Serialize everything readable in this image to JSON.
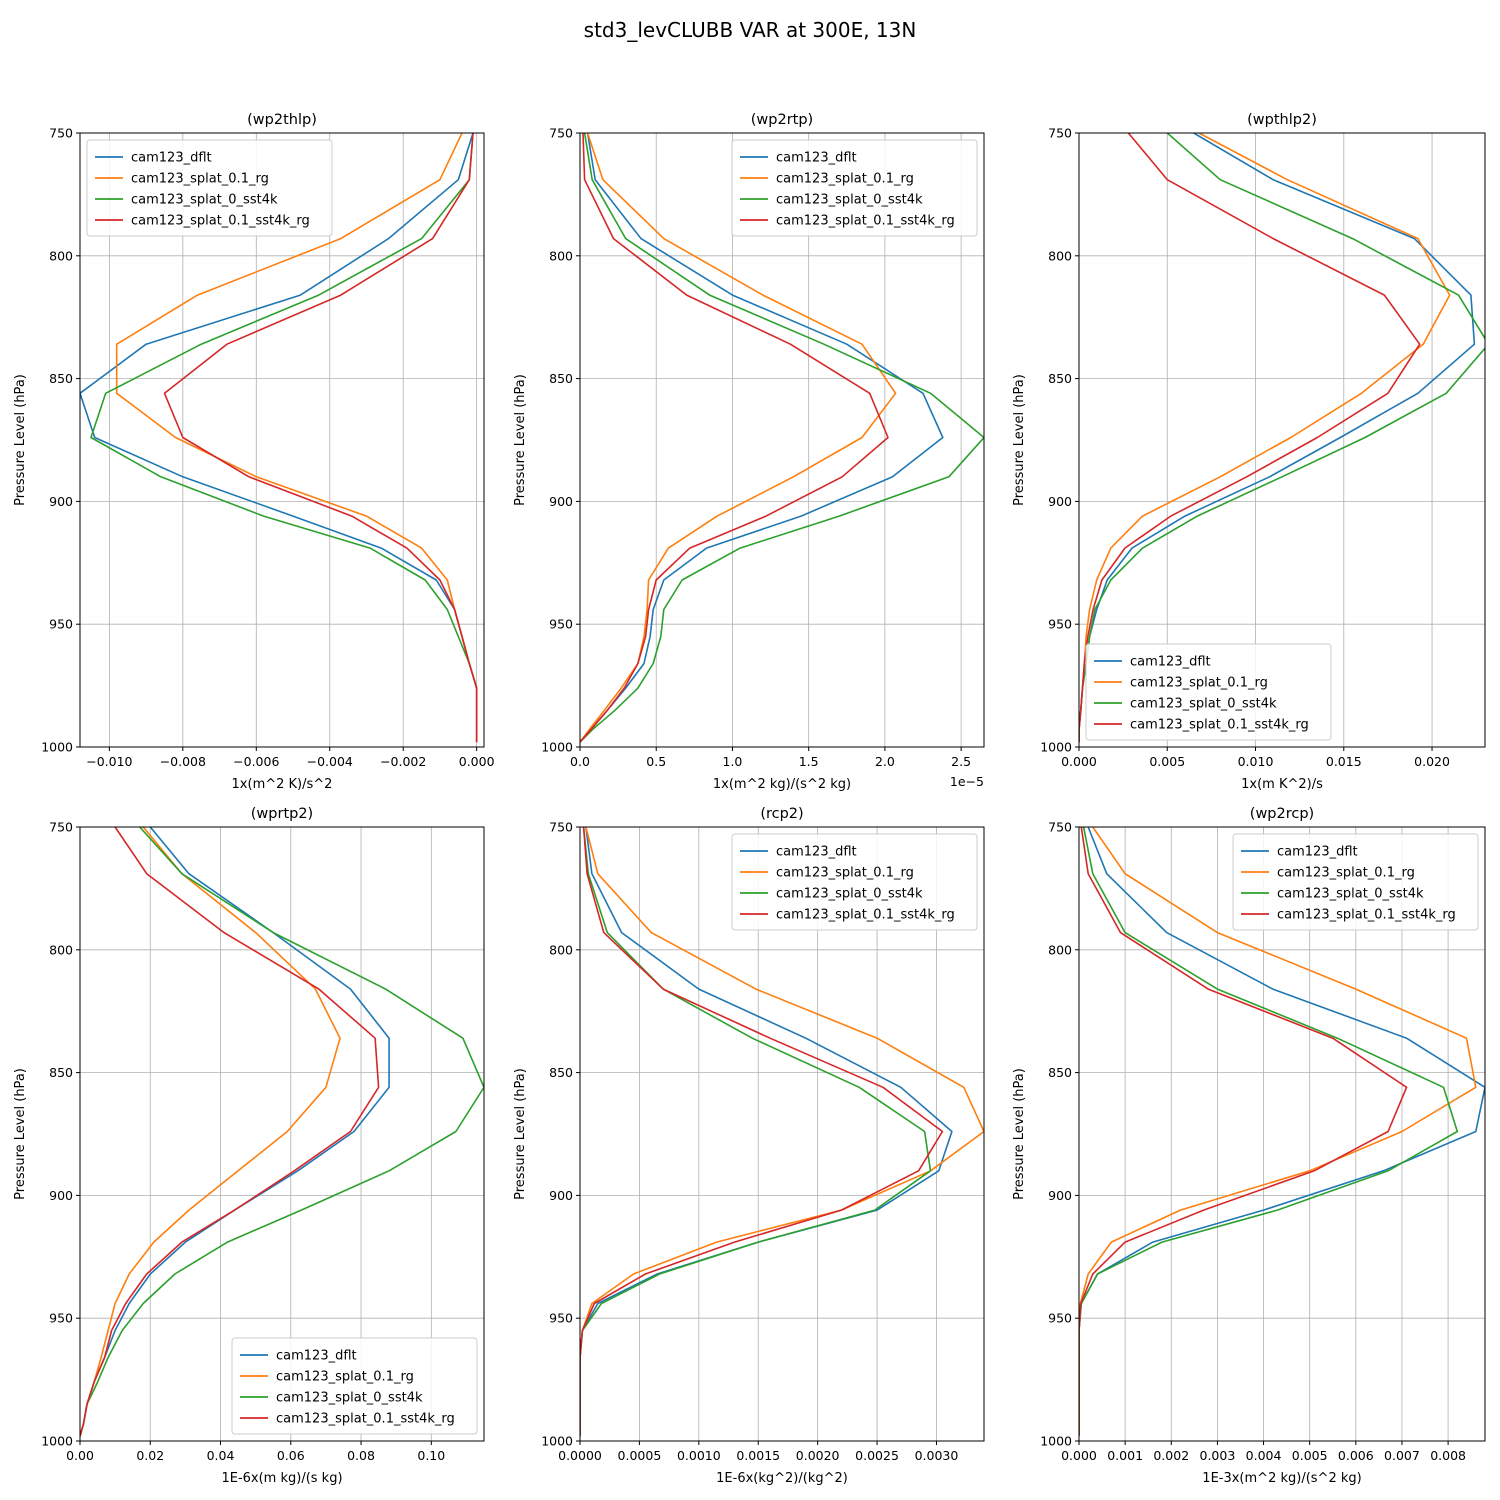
{
  "figure_title": "std3_levCLUBB VAR at 300E, 13N",
  "series_names": [
    "cam123_dflt",
    "cam123_splat_0.1_rg",
    "cam123_splat_0_sst4k",
    "cam123_splat_0.1_sst4k_rg"
  ],
  "series_colors": [
    "#1f77b4",
    "#ff7f0e",
    "#2ca02c",
    "#d62728"
  ],
  "chart_data": [
    {
      "type": "line",
      "title": "(wp2thlp)",
      "xlabel": "1x(m^2 K)/s^2",
      "ylabel": "Pressure Level (hPa)",
      "xlim": [
        -0.0108,
        0.0002
      ],
      "ylim": [
        1000,
        750
      ],
      "xticks": [
        -0.01,
        -0.008,
        -0.006,
        -0.004,
        -0.002,
        0.0
      ],
      "xtick_labels": [
        "−0.010",
        "−0.008",
        "−0.006",
        "−0.004",
        "−0.002",
        "0.000"
      ],
      "yticks": [
        750,
        800,
        850,
        900,
        950,
        1000
      ],
      "ytick_labels": [
        "750",
        "800",
        "850",
        "900",
        "950",
        "1000"
      ],
      "y": [
        750,
        769,
        793,
        816,
        836,
        856,
        874,
        890,
        906,
        919,
        932,
        944,
        955,
        966,
        976,
        985,
        993,
        998
      ],
      "series": [
        {
          "name": "cam123_dflt",
          "values": [
            -0.0001,
            -0.0005,
            -0.0024,
            -0.0048,
            -0.009,
            -0.0108,
            -0.0104,
            -0.008,
            -0.005,
            -0.0026,
            -0.0011,
            -0.0006,
            -0.0004,
            -0.0002,
            0.0,
            0.0,
            0.0,
            0.0
          ]
        },
        {
          "name": "cam123_splat_0.1_rg",
          "values": [
            -0.0004,
            -0.001,
            -0.0037,
            -0.0076,
            -0.0098,
            -0.0098,
            -0.0082,
            -0.006,
            -0.003,
            -0.0015,
            -0.0008,
            -0.0006,
            -0.0004,
            -0.0002,
            0.0,
            0.0,
            0.0,
            0.0
          ]
        },
        {
          "name": "cam123_splat_0_sst4k",
          "values": [
            -0.0001,
            -0.0002,
            -0.0015,
            -0.0043,
            -0.0075,
            -0.0101,
            -0.0105,
            -0.0086,
            -0.0058,
            -0.0029,
            -0.0014,
            -0.0008,
            -0.0005,
            -0.0002,
            0.0,
            0.0,
            0.0,
            0.0
          ]
        },
        {
          "name": "cam123_splat_0.1_sst4k_rg",
          "values": [
            -0.0001,
            -0.0002,
            -0.0012,
            -0.0037,
            -0.0068,
            -0.0085,
            -0.008,
            -0.0062,
            -0.0034,
            -0.0019,
            -0.001,
            -0.0006,
            -0.0004,
            -0.0002,
            0.0,
            0.0,
            0.0,
            0.0
          ]
        }
      ],
      "legend": "upper-left"
    },
    {
      "type": "line",
      "title": "(wp2rtp)",
      "xlabel": "1x(m^2 kg)/(s^2 kg)",
      "ylabel": "Pressure Level (hPa)",
      "offset_text": "1e−5",
      "xlim": [
        0,
        2.65
      ],
      "ylim": [
        1000,
        750
      ],
      "xticks": [
        0,
        0.5,
        1.0,
        1.5,
        2.0,
        2.5
      ],
      "xtick_labels": [
        "0.0",
        "0.5",
        "1.0",
        "1.5",
        "2.0",
        "2.5"
      ],
      "yticks": [
        750,
        800,
        850,
        900,
        950,
        1000
      ],
      "ytick_labels": [
        "750",
        "800",
        "850",
        "900",
        "950",
        "1000"
      ],
      "y": [
        750,
        769,
        793,
        816,
        836,
        856,
        874,
        890,
        906,
        919,
        932,
        944,
        955,
        966,
        976,
        985,
        993,
        998
      ],
      "series": [
        {
          "name": "cam123_dflt",
          "values": [
            0.05,
            0.1,
            0.4,
            1.0,
            1.75,
            2.25,
            2.38,
            2.05,
            1.45,
            0.83,
            0.55,
            0.48,
            0.46,
            0.42,
            0.3,
            0.18,
            0.07,
            0.0
          ]
        },
        {
          "name": "cam123_splat_0.1_rg",
          "values": [
            0.05,
            0.15,
            0.55,
            1.2,
            1.85,
            2.07,
            1.85,
            1.4,
            0.9,
            0.58,
            0.45,
            0.44,
            0.42,
            0.38,
            0.27,
            0.16,
            0.06,
            0.0
          ]
        },
        {
          "name": "cam123_splat_0_sst4k",
          "values": [
            0.03,
            0.08,
            0.3,
            0.85,
            1.6,
            2.3,
            2.65,
            2.42,
            1.7,
            1.05,
            0.67,
            0.55,
            0.53,
            0.48,
            0.38,
            0.23,
            0.08,
            0.0
          ]
        },
        {
          "name": "cam123_splat_0.1_sst4k_rg",
          "values": [
            0.02,
            0.03,
            0.22,
            0.7,
            1.38,
            1.9,
            2.02,
            1.72,
            1.22,
            0.72,
            0.5,
            0.45,
            0.43,
            0.38,
            0.29,
            0.18,
            0.07,
            0.0
          ]
        }
      ],
      "legend": "upper-right"
    },
    {
      "type": "line",
      "title": "(wpthlp2)",
      "xlabel": "1x(m K^2)/s",
      "ylabel": "Pressure Level (hPa)",
      "xlim": [
        0,
        0.023
      ],
      "ylim": [
        1000,
        750
      ],
      "xticks": [
        0,
        0.005,
        0.01,
        0.015,
        0.02
      ],
      "xtick_labels": [
        "0.000",
        "0.005",
        "0.010",
        "0.015",
        "0.020"
      ],
      "yticks": [
        750,
        800,
        850,
        900,
        950,
        1000
      ],
      "ytick_labels": [
        "750",
        "800",
        "850",
        "900",
        "950",
        "1000"
      ],
      "y": [
        750,
        769,
        793,
        816,
        836,
        856,
        874,
        890,
        906,
        919,
        932,
        944,
        955,
        966,
        976,
        985,
        993,
        998
      ],
      "series": [
        {
          "name": "cam123_dflt",
          "values": [
            0.0065,
            0.011,
            0.019,
            0.0222,
            0.0224,
            0.0192,
            0.0148,
            0.0108,
            0.006,
            0.003,
            0.0016,
            0.001,
            0.0006,
            0.0004,
            0.0002,
            0.0001,
            0.0,
            0.0
          ]
        },
        {
          "name": "cam123_splat_0.1_rg",
          "values": [
            0.0068,
            0.0118,
            0.0192,
            0.021,
            0.0195,
            0.016,
            0.012,
            0.008,
            0.0036,
            0.0018,
            0.001,
            0.0006,
            0.0004,
            0.0003,
            0.0002,
            0.0001,
            0.0,
            0.0
          ]
        },
        {
          "name": "cam123_splat_0_sst4k",
          "values": [
            0.005,
            0.008,
            0.0155,
            0.0215,
            0.0232,
            0.0208,
            0.0162,
            0.0115,
            0.0067,
            0.0036,
            0.0018,
            0.0009,
            0.0006,
            0.0004,
            0.0002,
            0.0001,
            0.0,
            0.0
          ]
        },
        {
          "name": "cam123_splat_0.1_sst4k_rg",
          "values": [
            0.0028,
            0.005,
            0.011,
            0.0173,
            0.0193,
            0.0175,
            0.0135,
            0.0095,
            0.0052,
            0.0026,
            0.0013,
            0.0008,
            0.0005,
            0.0003,
            0.0002,
            0.0001,
            0.0,
            0.0
          ]
        }
      ],
      "legend": "lower-left"
    },
    {
      "type": "line",
      "title": "(wprtp2)",
      "xlabel": "1E-6x(m kg)/(s kg)",
      "ylabel": "Pressure Level (hPa)",
      "xlim": [
        0,
        0.115
      ],
      "ylim": [
        1000,
        750
      ],
      "xticks": [
        0,
        0.02,
        0.04,
        0.06,
        0.08,
        0.1
      ],
      "xtick_labels": [
        "0.00",
        "0.02",
        "0.04",
        "0.06",
        "0.08",
        "0.10"
      ],
      "yticks": [
        750,
        800,
        850,
        900,
        950,
        1000
      ],
      "ytick_labels": [
        "750",
        "800",
        "850",
        "900",
        "950",
        "1000"
      ],
      "y": [
        750,
        769,
        793,
        816,
        836,
        856,
        874,
        890,
        906,
        919,
        932,
        944,
        955,
        966,
        976,
        985,
        993,
        998
      ],
      "series": [
        {
          "name": "cam123_dflt",
          "values": [
            0.02,
            0.031,
            0.055,
            0.077,
            0.088,
            0.088,
            0.078,
            0.062,
            0.044,
            0.03,
            0.02,
            0.014,
            0.01,
            0.007,
            0.004,
            0.002,
            0.001,
            0.0
          ]
        },
        {
          "name": "cam123_splat_0.1_rg",
          "values": [
            0.018,
            0.029,
            0.05,
            0.067,
            0.074,
            0.07,
            0.059,
            0.045,
            0.031,
            0.021,
            0.014,
            0.01,
            0.008,
            0.006,
            0.004,
            0.002,
            0.001,
            0.0
          ]
        },
        {
          "name": "cam123_splat_0_sst4k",
          "values": [
            0.017,
            0.029,
            0.055,
            0.087,
            0.109,
            0.115,
            0.107,
            0.088,
            0.063,
            0.042,
            0.027,
            0.018,
            0.012,
            0.008,
            0.005,
            0.002,
            0.001,
            0.0
          ]
        },
        {
          "name": "cam123_splat_0.1_sst4k_rg",
          "values": [
            0.01,
            0.019,
            0.041,
            0.068,
            0.084,
            0.085,
            0.077,
            0.061,
            0.044,
            0.029,
            0.019,
            0.013,
            0.009,
            0.007,
            0.004,
            0.002,
            0.001,
            0.0
          ]
        }
      ],
      "legend": "lower-right"
    },
    {
      "type": "line",
      "title": "(rcp2)",
      "xlabel": "1E-6x(kg^2)/(kg^2)",
      "ylabel": "Pressure Level (hPa)",
      "xlim": [
        0,
        0.0034
      ],
      "ylim": [
        1000,
        750
      ],
      "xticks": [
        0,
        0.0005,
        0.001,
        0.0015,
        0.002,
        0.0025,
        0.003
      ],
      "xtick_labels": [
        "0.0000",
        "0.0005",
        "0.0010",
        "0.0015",
        "0.0020",
        "0.0025",
        "0.0030"
      ],
      "yticks": [
        750,
        800,
        850,
        900,
        950,
        1000
      ],
      "ytick_labels": [
        "750",
        "800",
        "850",
        "900",
        "950",
        "1000"
      ],
      "y": [
        750,
        769,
        793,
        816,
        836,
        856,
        874,
        890,
        906,
        919,
        932,
        944,
        955,
        966,
        976,
        985,
        993,
        998
      ],
      "series": [
        {
          "name": "cam123_dflt",
          "values": [
            5e-05,
            0.0001,
            0.00035,
            0.001,
            0.0019,
            0.0027,
            0.00313,
            0.00302,
            0.0025,
            0.0015,
            0.00065,
            0.00015,
            2e-05,
            0.0,
            0.0,
            0.0,
            0.0,
            0.0
          ]
        },
        {
          "name": "cam123_splat_0.1_rg",
          "values": [
            5e-05,
            0.00015,
            0.0006,
            0.00148,
            0.0025,
            0.00323,
            0.0034,
            0.00295,
            0.0022,
            0.00115,
            0.00045,
            0.0001,
            2e-05,
            0.0,
            0.0,
            0.0,
            0.0,
            0.0
          ]
        },
        {
          "name": "cam123_splat_0_sst4k",
          "values": [
            3e-05,
            7e-05,
            0.00023,
            0.0007,
            0.00145,
            0.00235,
            0.0029,
            0.00295,
            0.00248,
            0.0015,
            0.00067,
            0.00018,
            2e-05,
            0.0,
            0.0,
            0.0,
            0.0,
            0.0
          ]
        },
        {
          "name": "cam123_splat_0.1_sst4k_rg",
          "values": [
            3e-05,
            6e-05,
            0.0002,
            0.0007,
            0.0016,
            0.00255,
            0.00305,
            0.00285,
            0.0022,
            0.0013,
            0.00055,
            0.00012,
            2e-05,
            0.0,
            0.0,
            0.0,
            0.0,
            0.0
          ]
        }
      ],
      "legend": "upper-right"
    },
    {
      "type": "line",
      "title": "(wp2rcp)",
      "xlabel": "1E-3x(m^2 kg)/(s^2 kg)",
      "ylabel": "Pressure Level (hPa)",
      "xlim": [
        0,
        0.0088
      ],
      "ylim": [
        1000,
        750
      ],
      "xticks": [
        0,
        0.001,
        0.002,
        0.003,
        0.004,
        0.005,
        0.006,
        0.007,
        0.008
      ],
      "xtick_labels": [
        "0.000",
        "0.001",
        "0.002",
        "0.003",
        "0.004",
        "0.005",
        "0.006",
        "0.007",
        "0.008"
      ],
      "yticks": [
        750,
        800,
        850,
        900,
        950,
        1000
      ],
      "ytick_labels": [
        "750",
        "800",
        "850",
        "900",
        "950",
        "1000"
      ],
      "y": [
        750,
        769,
        793,
        816,
        836,
        856,
        874,
        890,
        906,
        919,
        932,
        944,
        955,
        966,
        976,
        985,
        993,
        998
      ],
      "series": [
        {
          "name": "cam123_dflt",
          "values": [
            0.0002,
            0.0006,
            0.0019,
            0.0042,
            0.0071,
            0.0088,
            0.0086,
            0.0066,
            0.004,
            0.0016,
            0.0004,
            5e-05,
            0.0,
            0.0,
            0.0,
            0.0,
            0.0,
            0.0
          ]
        },
        {
          "name": "cam123_splat_0.1_rg",
          "values": [
            0.0003,
            0.001,
            0.003,
            0.006,
            0.0084,
            0.0086,
            0.007,
            0.005,
            0.0022,
            0.0007,
            0.0002,
            3e-05,
            0.0,
            0.0,
            0.0,
            0.0,
            0.0,
            0.0
          ]
        },
        {
          "name": "cam123_splat_0_sst4k",
          "values": [
            0.0001,
            0.0003,
            0.001,
            0.003,
            0.0056,
            0.0079,
            0.0082,
            0.0067,
            0.0043,
            0.0018,
            0.0004,
            5e-05,
            0.0,
            0.0,
            0.0,
            0.0,
            0.0,
            0.0
          ]
        },
        {
          "name": "cam123_splat_0.1_sst4k_rg",
          "values": [
            5e-05,
            0.0002,
            0.0009,
            0.0028,
            0.0055,
            0.0071,
            0.0067,
            0.0051,
            0.0027,
            0.001,
            0.0003,
            4e-05,
            0.0,
            0.0,
            0.0,
            0.0,
            0.0,
            0.0
          ]
        }
      ],
      "legend": "upper-right"
    }
  ]
}
